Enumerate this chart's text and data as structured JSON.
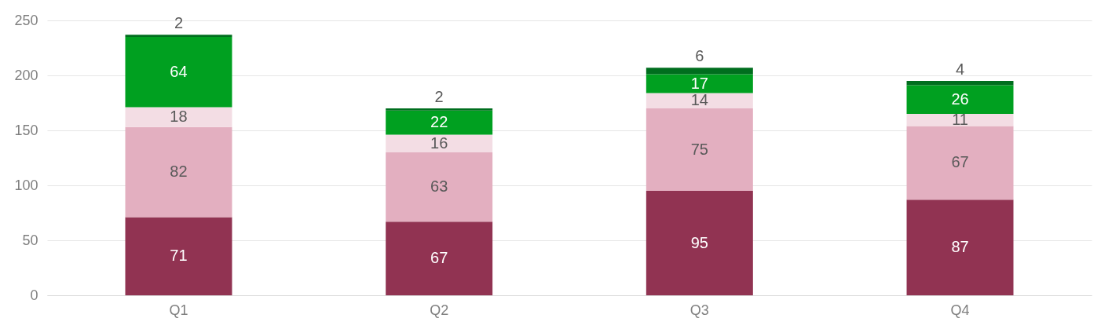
{
  "chart_data": {
    "type": "bar",
    "stacked": true,
    "categories": [
      "Q1",
      "Q2",
      "Q3",
      "Q4"
    ],
    "series": [
      {
        "color": "#913352",
        "values": [
          71,
          67,
          95,
          87
        ]
      },
      {
        "color": "#e3afc0",
        "values": [
          82,
          63,
          75,
          67
        ]
      },
      {
        "color": "#f3dde4",
        "values": [
          18,
          16,
          14,
          11
        ]
      },
      {
        "color": "#00a020",
        "values": [
          64,
          22,
          17,
          26
        ]
      },
      {
        "color": "#006e1e",
        "values": [
          2,
          2,
          6,
          4
        ]
      }
    ],
    "ylim": [
      0,
      250
    ],
    "yticks": [
      0,
      50,
      100,
      150,
      200,
      250
    ],
    "grid": "y",
    "data_labels": true
  }
}
